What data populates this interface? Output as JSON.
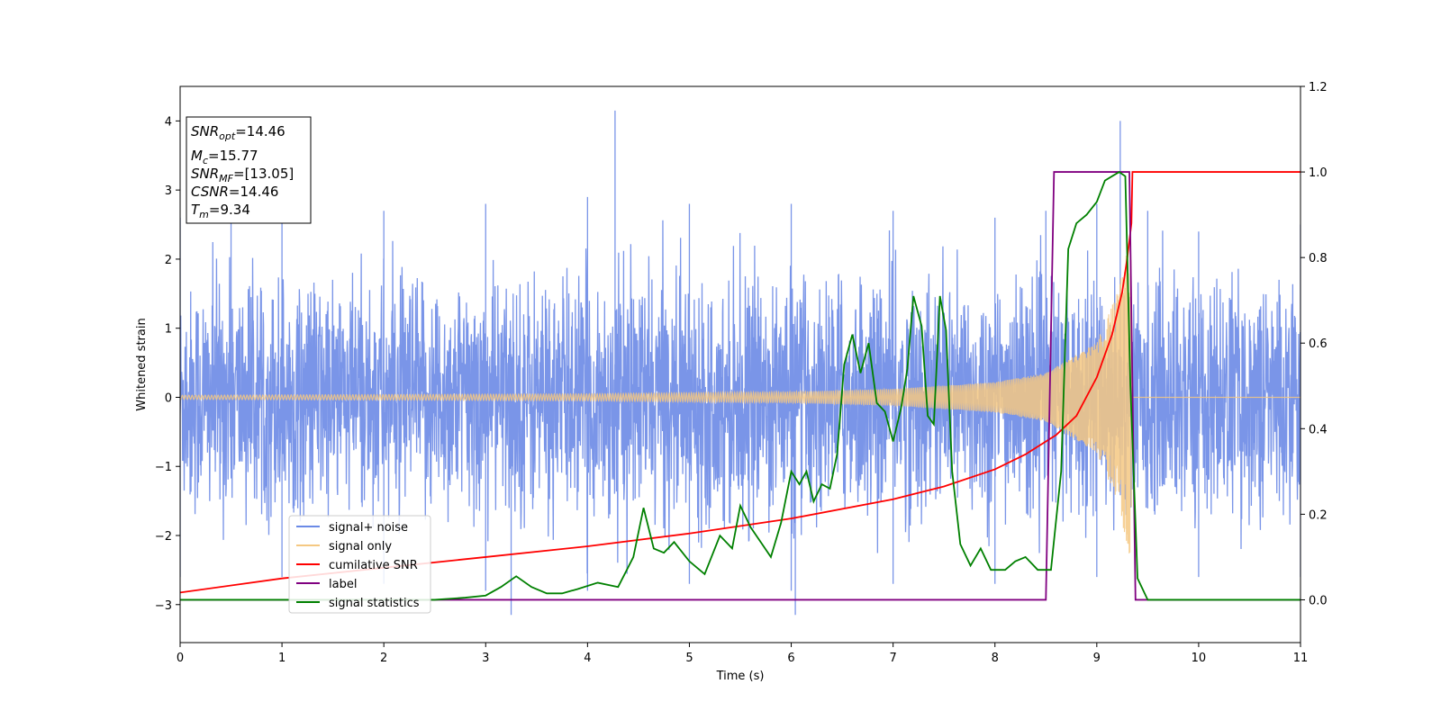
{
  "chart_data": {
    "type": "line",
    "xlabel": "Time (s)",
    "ylabel_left": "Whitened strain",
    "ylabel_right": "",
    "xlim": [
      0,
      11
    ],
    "ylim_left": [
      -3.55,
      4.5
    ],
    "ylim_right": [
      -0.1,
      1.2
    ],
    "x_ticks": [
      0,
      1,
      2,
      3,
      4,
      5,
      6,
      7,
      8,
      9,
      10,
      11
    ],
    "y_ticks_left": [
      -3,
      -2,
      -1,
      0,
      1,
      2,
      3,
      4
    ],
    "y_ticks_right": [
      0.0,
      0.2,
      0.4,
      0.6,
      0.8,
      1.0,
      1.2
    ],
    "y_tick_labels_left": [
      "−3",
      "−2",
      "−1",
      "0",
      "1",
      "2",
      "3",
      "4"
    ],
    "y_tick_labels_right": [
      "0.0",
      "0.2",
      "0.4",
      "0.6",
      "0.8",
      "1.0",
      "1.2"
    ],
    "grid": false,
    "legend_position": "lower-left",
    "colors": {
      "noise": "#6b8ae6",
      "signal": "#f5c882",
      "cumsnr": "#ff0000",
      "label": "#800080",
      "stats": "#008000"
    },
    "annotation": {
      "lines": [
        {
          "main": "SNR",
          "sub": "opt",
          "rest": "=14.46"
        },
        {
          "main": "M",
          "sub": "c",
          "rest": "=15.77"
        },
        {
          "main": "SNR",
          "sub": "MF",
          "rest": "=[13.05]"
        },
        {
          "main": "CSNR",
          "sub": "",
          "rest": "=14.46"
        },
        {
          "main": "T",
          "sub": "m",
          "rest": "=9.34"
        }
      ]
    },
    "series": [
      {
        "name": "signal+ noise",
        "axis": "left",
        "kind": "noise",
        "envelope_points": [
          [
            0,
            2.6
          ],
          [
            0.5,
            2.6
          ],
          [
            1,
            2.7
          ],
          [
            2,
            2.7
          ],
          [
            3,
            2.8
          ],
          [
            4,
            2.9
          ],
          [
            4.27,
            4.15
          ],
          [
            5,
            2.8
          ],
          [
            6,
            2.8
          ],
          [
            7,
            2.7
          ],
          [
            8,
            2.6
          ],
          [
            8.5,
            2.7
          ],
          [
            9,
            2.8
          ],
          [
            9.23,
            4.0
          ],
          [
            9.5,
            2.7
          ],
          [
            10,
            2.4
          ],
          [
            11,
            2.5
          ]
        ],
        "low_points": [
          [
            0,
            -2.6
          ],
          [
            1,
            -2.6
          ],
          [
            2,
            -2.7
          ],
          [
            3,
            -2.8
          ],
          [
            3.25,
            -3.15
          ],
          [
            4,
            -2.8
          ],
          [
            5,
            -2.7
          ],
          [
            6,
            -2.8
          ],
          [
            6.04,
            -3.15
          ],
          [
            7,
            -2.7
          ],
          [
            8,
            -2.7
          ],
          [
            9,
            -2.6
          ],
          [
            10,
            -2.6
          ],
          [
            11,
            -2.6
          ]
        ]
      },
      {
        "name": "signal only",
        "axis": "left",
        "kind": "chirp",
        "amplitude_points": [
          [
            0,
            0.03
          ],
          [
            2,
            0.04
          ],
          [
            4,
            0.05
          ],
          [
            6,
            0.08
          ],
          [
            7,
            0.12
          ],
          [
            8,
            0.22
          ],
          [
            8.5,
            0.35
          ],
          [
            9,
            0.8
          ],
          [
            9.2,
            1.5
          ],
          [
            9.34,
            2.4
          ],
          [
            9.36,
            0.0
          ],
          [
            11,
            0.0
          ]
        ]
      },
      {
        "name": "cumilative SNR",
        "axis": "right",
        "kind": "line",
        "x": [
          0,
          1,
          2,
          3,
          4,
          5,
          6,
          7,
          7.5,
          8,
          8.3,
          8.6,
          8.8,
          9.0,
          9.15,
          9.25,
          9.3,
          9.34,
          9.35,
          11
        ],
        "y": [
          0.017,
          0.05,
          0.075,
          0.1,
          0.125,
          0.155,
          0.19,
          0.235,
          0.265,
          0.305,
          0.34,
          0.385,
          0.43,
          0.52,
          0.62,
          0.72,
          0.8,
          0.88,
          1.0,
          1.0
        ]
      },
      {
        "name": "label",
        "axis": "right",
        "kind": "line",
        "x": [
          0,
          8.5,
          8.58,
          9.32,
          9.38,
          11
        ],
        "y": [
          0.0,
          0.0,
          1.0,
          1.0,
          0.0,
          0.0
        ]
      },
      {
        "name": "signal statistics",
        "axis": "right",
        "kind": "line",
        "x": [
          0,
          1,
          2,
          2.5,
          2.8,
          3.0,
          3.15,
          3.3,
          3.45,
          3.6,
          3.75,
          3.9,
          4.1,
          4.3,
          4.45,
          4.55,
          4.65,
          4.75,
          4.85,
          5.0,
          5.15,
          5.3,
          5.42,
          5.5,
          5.6,
          5.7,
          5.8,
          5.9,
          6.0,
          6.08,
          6.15,
          6.22,
          6.3,
          6.38,
          6.45,
          6.52,
          6.6,
          6.68,
          6.76,
          6.84,
          6.92,
          7.0,
          7.08,
          7.14,
          7.2,
          7.28,
          7.34,
          7.4,
          7.46,
          7.52,
          7.58,
          7.66,
          7.76,
          7.86,
          7.96,
          8.1,
          8.2,
          8.3,
          8.42,
          8.55,
          8.65,
          8.72,
          8.8,
          8.9,
          9.0,
          9.08,
          9.15,
          9.22,
          9.28,
          9.33,
          9.4,
          9.5,
          11
        ],
        "y": [
          0.0,
          0.0,
          0.0,
          0.0,
          0.005,
          0.01,
          0.03,
          0.055,
          0.03,
          0.015,
          0.015,
          0.025,
          0.04,
          0.03,
          0.1,
          0.215,
          0.12,
          0.11,
          0.135,
          0.09,
          0.06,
          0.15,
          0.12,
          0.22,
          0.17,
          0.135,
          0.1,
          0.18,
          0.3,
          0.27,
          0.3,
          0.23,
          0.27,
          0.26,
          0.34,
          0.55,
          0.62,
          0.53,
          0.6,
          0.46,
          0.44,
          0.37,
          0.45,
          0.54,
          0.71,
          0.64,
          0.43,
          0.41,
          0.71,
          0.63,
          0.3,
          0.13,
          0.08,
          0.12,
          0.07,
          0.07,
          0.09,
          0.1,
          0.07,
          0.07,
          0.3,
          0.82,
          0.88,
          0.9,
          0.93,
          0.98,
          0.99,
          1.0,
          0.99,
          0.5,
          0.05,
          0.0,
          0.0
        ]
      }
    ]
  }
}
